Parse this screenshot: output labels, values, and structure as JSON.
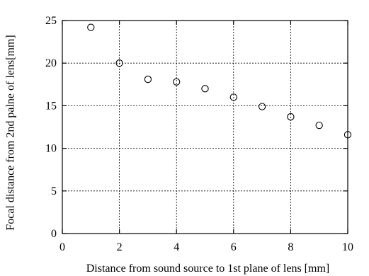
{
  "chart_data": {
    "type": "scatter",
    "xlabel": "Distance from sound source to 1st plane of lens [mm]",
    "ylabel": "Focal distance from 2nd palne of lens[mm]",
    "xlim": [
      0,
      10
    ],
    "ylim": [
      0,
      25
    ],
    "xticks": [
      0,
      2,
      4,
      6,
      8,
      10
    ],
    "yticks": [
      0,
      5,
      10,
      15,
      20,
      25
    ],
    "grid": true,
    "marker": "open-circle",
    "series": [
      {
        "x": [
          1,
          2,
          3,
          4,
          5,
          6,
          7,
          8,
          9,
          10
        ],
        "y": [
          24.2,
          20.0,
          18.1,
          17.8,
          17.0,
          16.0,
          14.9,
          13.7,
          12.7,
          11.6
        ]
      }
    ]
  }
}
